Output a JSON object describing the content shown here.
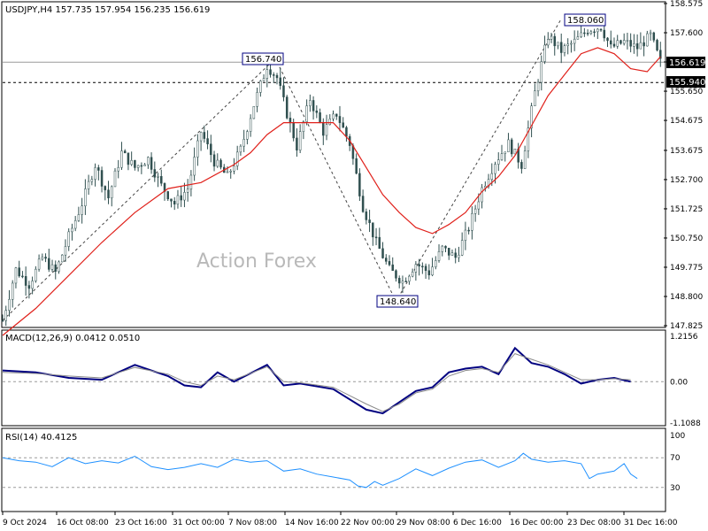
{
  "main_panel": {
    "title": "USDJPY,H4  157.735 157.954 156.235 156.619",
    "watermark": "Action Forex",
    "price_ticks": [
      "158.575",
      "157.600",
      "156.625",
      "155.650",
      "154.675",
      "153.675",
      "152.700",
      "151.725",
      "150.750",
      "149.775",
      "148.800",
      "147.825"
    ],
    "last_price_tag": "156.619",
    "level_tag": "155.940",
    "annotations": {
      "high": "158.060",
      "peak": "156.740",
      "low": "148.640"
    }
  },
  "macd_panel": {
    "title": "MACD(12,26,9) 0.0412 0.0510",
    "ticks": [
      "1.2156",
      "0.00",
      "-1.1088"
    ]
  },
  "rsi_panel": {
    "title": "RSI(14) 40.4125",
    "ticks": [
      "100",
      "70",
      "30",
      "0"
    ]
  },
  "time_axis": [
    "9 Oct 2024",
    "16 Oct 08:00",
    "23 Oct 16:00",
    "31 Oct 00:00",
    "7 Nov 08:00",
    "14 Nov 16:00",
    "22 Nov 00:00",
    "29 Nov 08:00",
    "6 Dec 16:00",
    "16 Dec 00:00",
    "23 Dec 08:00",
    "31 Dec 16:00"
  ],
  "colors": {
    "candles": "#2f4f4f",
    "ma": "#e0201a",
    "macd": "#000080",
    "signal": "#8a8a8a",
    "rsi": "#1e90ff",
    "tag_bg": "#000000"
  },
  "chart_data": [
    {
      "type": "candlestick",
      "title": "USDJPY,H4",
      "ylim": [
        147.825,
        158.575
      ],
      "close_path": [
        [
          0,
          148.0
        ],
        [
          8,
          149.7
        ],
        [
          16,
          149.2
        ],
        [
          24,
          150.1
        ],
        [
          32,
          149.6
        ],
        [
          40,
          150.8
        ],
        [
          48,
          151.9
        ],
        [
          56,
          153.2
        ],
        [
          64,
          152.1
        ],
        [
          72,
          153.6
        ],
        [
          80,
          153.1
        ],
        [
          88,
          153.4
        ],
        [
          96,
          152.5
        ],
        [
          104,
          151.9
        ],
        [
          112,
          152.4
        ],
        [
          120,
          154.3
        ],
        [
          128,
          153.3
        ],
        [
          136,
          152.8
        ],
        [
          144,
          153.7
        ],
        [
          152,
          155.2
        ],
        [
          160,
          156.5
        ],
        [
          166,
          156.1
        ],
        [
          172,
          154.9
        ],
        [
          178,
          153.8
        ],
        [
          186,
          155.4
        ],
        [
          194,
          154.3
        ],
        [
          202,
          154.9
        ],
        [
          210,
          153.9
        ],
        [
          218,
          151.8
        ],
        [
          226,
          150.6
        ],
        [
          234,
          149.7
        ],
        [
          242,
          149.3
        ],
        [
          250,
          149.9
        ],
        [
          258,
          149.6
        ],
        [
          266,
          150.4
        ],
        [
          274,
          150.1
        ],
        [
          282,
          151.1
        ],
        [
          290,
          152.4
        ],
        [
          298,
          153.3
        ],
        [
          306,
          153.9
        ],
        [
          314,
          153.2
        ],
        [
          322,
          155.6
        ],
        [
          330,
          157.5
        ],
        [
          338,
          157.0
        ],
        [
          346,
          157.3
        ],
        [
          354,
          157.7
        ],
        [
          362,
          157.8
        ],
        [
          368,
          157.1
        ],
        [
          376,
          157.3
        ],
        [
          384,
          157.1
        ],
        [
          392,
          157.5
        ],
        [
          398,
          156.62
        ]
      ],
      "ma_path": [
        [
          0,
          147.5
        ],
        [
          20,
          148.4
        ],
        [
          40,
          149.5
        ],
        [
          60,
          150.6
        ],
        [
          80,
          151.6
        ],
        [
          100,
          152.4
        ],
        [
          120,
          152.6
        ],
        [
          140,
          153.2
        ],
        [
          150,
          153.6
        ],
        [
          160,
          154.2
        ],
        [
          170,
          154.6
        ],
        [
          180,
          154.6
        ],
        [
          200,
          154.6
        ],
        [
          210,
          154.0
        ],
        [
          220,
          153.1
        ],
        [
          230,
          152.2
        ],
        [
          240,
          151.6
        ],
        [
          250,
          151.1
        ],
        [
          260,
          150.9
        ],
        [
          270,
          151.2
        ],
        [
          280,
          151.6
        ],
        [
          290,
          152.3
        ],
        [
          300,
          152.8
        ],
        [
          310,
          153.5
        ],
        [
          320,
          154.5
        ],
        [
          330,
          155.5
        ],
        [
          340,
          156.2
        ],
        [
          350,
          156.9
        ],
        [
          360,
          157.1
        ],
        [
          370,
          156.9
        ],
        [
          380,
          156.4
        ],
        [
          390,
          156.3
        ],
        [
          398,
          156.8
        ]
      ],
      "levels": {
        "last": 156.619,
        "support": 155.94,
        "high": 158.06,
        "peak": 156.74,
        "low": 148.64
      }
    },
    {
      "type": "line",
      "title": "MACD(12,26,9)",
      "ylim": [
        -1.1088,
        1.2156
      ],
      "series": [
        {
          "name": "MACD",
          "points": [
            [
              0,
              0.3
            ],
            [
              20,
              0.25
            ],
            [
              40,
              0.1
            ],
            [
              60,
              0.05
            ],
            [
              80,
              0.45
            ],
            [
              100,
              0.15
            ],
            [
              110,
              -0.1
            ],
            [
              120,
              -0.15
            ],
            [
              130,
              0.25
            ],
            [
              140,
              0.0
            ],
            [
              160,
              0.45
            ],
            [
              170,
              -0.1
            ],
            [
              180,
              -0.05
            ],
            [
              200,
              -0.2
            ],
            [
              220,
              -0.75
            ],
            [
              230,
              -0.85
            ],
            [
              240,
              -0.55
            ],
            [
              250,
              -0.25
            ],
            [
              260,
              -0.15
            ],
            [
              270,
              0.25
            ],
            [
              280,
              0.35
            ],
            [
              290,
              0.4
            ],
            [
              300,
              0.2
            ],
            [
              310,
              0.9
            ],
            [
              320,
              0.5
            ],
            [
              330,
              0.4
            ],
            [
              340,
              0.2
            ],
            [
              350,
              -0.05
            ],
            [
              360,
              0.05
            ],
            [
              370,
              0.1
            ],
            [
              380,
              0.0
            ]
          ]
        },
        {
          "name": "Signal",
          "points": [
            [
              0,
              0.25
            ],
            [
              20,
              0.22
            ],
            [
              40,
              0.15
            ],
            [
              60,
              0.1
            ],
            [
              80,
              0.38
            ],
            [
              100,
              0.2
            ],
            [
              110,
              0.0
            ],
            [
              120,
              -0.1
            ],
            [
              130,
              0.15
            ],
            [
              140,
              0.05
            ],
            [
              160,
              0.4
            ],
            [
              170,
              0.0
            ],
            [
              180,
              -0.03
            ],
            [
              200,
              -0.15
            ],
            [
              220,
              -0.6
            ],
            [
              230,
              -0.8
            ],
            [
              240,
              -0.6
            ],
            [
              250,
              -0.3
            ],
            [
              260,
              -0.2
            ],
            [
              270,
              0.15
            ],
            [
              280,
              0.3
            ],
            [
              290,
              0.35
            ],
            [
              300,
              0.25
            ],
            [
              310,
              0.75
            ],
            [
              320,
              0.6
            ],
            [
              330,
              0.45
            ],
            [
              340,
              0.25
            ],
            [
              350,
              0.05
            ],
            [
              360,
              0.05
            ],
            [
              370,
              0.08
            ],
            [
              380,
              0.05
            ]
          ]
        }
      ]
    },
    {
      "type": "line",
      "title": "RSI(14)",
      "ylim": [
        0,
        100
      ],
      "series": [
        {
          "name": "RSI(14)",
          "points": [
            [
              0,
              70
            ],
            [
              10,
              66
            ],
            [
              20,
              64
            ],
            [
              30,
              58
            ],
            [
              40,
              70
            ],
            [
              50,
              62
            ],
            [
              60,
              66
            ],
            [
              70,
              63
            ],
            [
              80,
              72
            ],
            [
              90,
              58
            ],
            [
              100,
              54
            ],
            [
              110,
              57
            ],
            [
              120,
              62
            ],
            [
              130,
              57
            ],
            [
              140,
              68
            ],
            [
              150,
              64
            ],
            [
              160,
              66
            ],
            [
              170,
              52
            ],
            [
              180,
              55
            ],
            [
              190,
              48
            ],
            [
              200,
              44
            ],
            [
              210,
              40
            ],
            [
              215,
              32
            ],
            [
              220,
              30
            ],
            [
              225,
              38
            ],
            [
              230,
              33
            ],
            [
              240,
              42
            ],
            [
              250,
              55
            ],
            [
              260,
              46
            ],
            [
              270,
              56
            ],
            [
              280,
              64
            ],
            [
              290,
              67
            ],
            [
              300,
              57
            ],
            [
              310,
              66
            ],
            [
              315,
              76
            ],
            [
              320,
              68
            ],
            [
              330,
              64
            ],
            [
              340,
              66
            ],
            [
              350,
              62
            ],
            [
              355,
              42
            ],
            [
              360,
              48
            ],
            [
              370,
              52
            ],
            [
              376,
              62
            ],
            [
              380,
              48
            ],
            [
              384,
              42
            ]
          ]
        }
      ]
    }
  ]
}
